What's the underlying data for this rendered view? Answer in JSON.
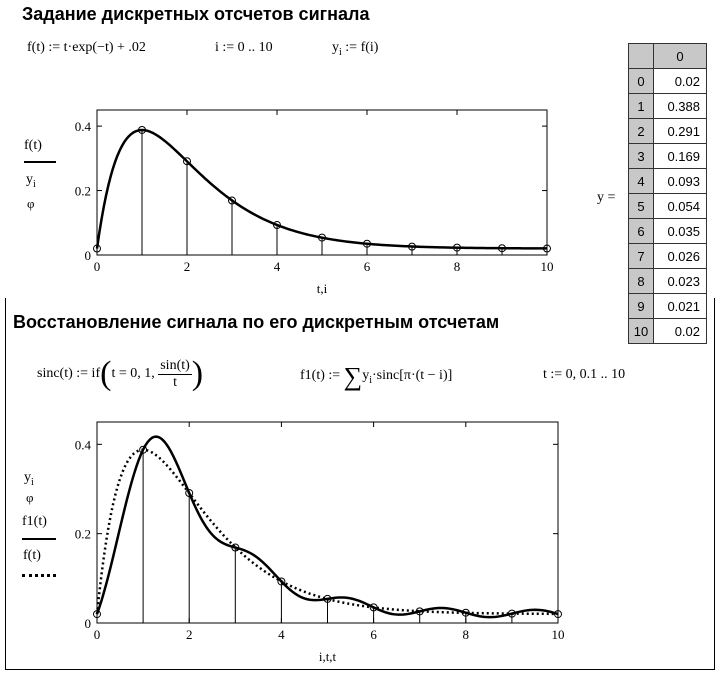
{
  "heading1": "Задание дискретных отсчетов сигнала",
  "heading2": "Восстановление сигнала по его дискретным отсчетам",
  "formulas": {
    "f_def": "f(t) := t·exp(−t) + .02",
    "i_range": "i := 0 .. 10",
    "y_def_lhs": "y",
    "y_def_sub": "i",
    "y_def_rhs": " := f(i)",
    "sinc_lhs": "sinc(t) := if",
    "sinc_cond": "t = 0, 1,",
    "sinc_num": "sin(t)",
    "sinc_den": "t",
    "f1_lhs": "f1(t) :=",
    "f1_sum": "∑",
    "f1_body": "y",
    "f1_body_sub": "i",
    "f1_body_rest": "·sinc[π·(t − i)]",
    "t_range": "t := 0, 0.1 .. 10"
  },
  "matrix": {
    "label": "y =",
    "column_header": "0",
    "rows": [
      "0",
      "1",
      "2",
      "3",
      "4",
      "5",
      "6",
      "7",
      "8",
      "9",
      "10"
    ],
    "values": [
      "0.02",
      "0.388",
      "0.291",
      "0.169",
      "0.093",
      "0.054",
      "0.035",
      "0.026",
      "0.023",
      "0.021",
      "0.02"
    ]
  },
  "plot1": {
    "ylabel_top": "f(t)",
    "ylabel_bottom": "y",
    "ylabel_bottom_sub": "i",
    "marker_glyph": "φ",
    "xlabel": "t,i"
  },
  "plot2": {
    "ylabel_y": "y",
    "ylabel_y_sub": "i",
    "marker_glyph": "φ",
    "ylabel_f1": "f1(t)",
    "ylabel_f": "f(t)",
    "xlabel": "i,t,t"
  },
  "chart_data": [
    {
      "type": "line",
      "xlabel": "t,i",
      "xlim": [
        0,
        10
      ],
      "ylim": [
        0,
        0.45
      ],
      "x_ticks": [
        "0",
        "2",
        "4",
        "6",
        "8",
        "10"
      ],
      "y_ticks": [
        "0",
        "0.2",
        "0.4"
      ],
      "series": [
        {
          "name": "f(t)",
          "style": "solid",
          "function": "t*exp(-t)+0.02"
        },
        {
          "name": "y",
          "style": "stem-circle",
          "x": [
            0,
            1,
            2,
            3,
            4,
            5,
            6,
            7,
            8,
            9,
            10
          ],
          "values": [
            0.02,
            0.388,
            0.291,
            0.169,
            0.093,
            0.054,
            0.035,
            0.026,
            0.023,
            0.021,
            0.02
          ]
        }
      ]
    },
    {
      "type": "line",
      "xlabel": "i,t,t",
      "xlim": [
        0,
        10
      ],
      "ylim": [
        0,
        0.45
      ],
      "x_ticks": [
        "0",
        "2",
        "4",
        "6",
        "8",
        "10"
      ],
      "y_ticks": [
        "0",
        "0.2",
        "0.4"
      ],
      "series": [
        {
          "name": "y",
          "style": "stem-circle",
          "x": [
            0,
            1,
            2,
            3,
            4,
            5,
            6,
            7,
            8,
            9,
            10
          ],
          "values": [
            0.02,
            0.388,
            0.291,
            0.169,
            0.093,
            0.054,
            0.035,
            0.026,
            0.023,
            0.021,
            0.02
          ]
        },
        {
          "name": "f1(t)",
          "style": "solid",
          "function": "sum_i y_i*sinc(pi*(t-i))"
        },
        {
          "name": "f(t)",
          "style": "dotted",
          "function": "t*exp(-t)+0.02"
        }
      ]
    }
  ]
}
